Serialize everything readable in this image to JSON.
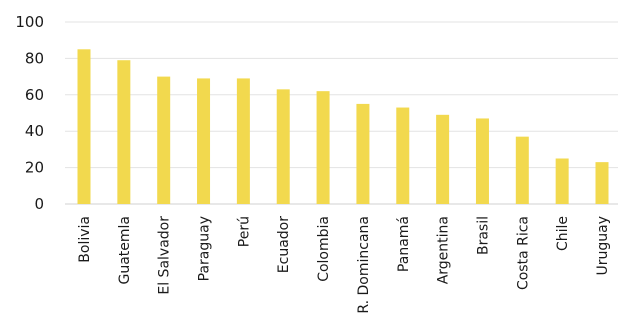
{
  "chart_data": {
    "type": "bar",
    "title": "",
    "xlabel": "",
    "ylabel": "",
    "categories": [
      "Bolivia",
      "Guatemla",
      "El Salvador",
      "Paraguay",
      "Perú",
      "Ecuador",
      "Colombia",
      "R. Domincana",
      "Panamá",
      "Argentina",
      "Brasil",
      "Costa Rica",
      "Chile",
      "Uruguay"
    ],
    "values": [
      85,
      79,
      70,
      69,
      69,
      63,
      62,
      55,
      53,
      49,
      47,
      37,
      25,
      23
    ],
    "ylim": [
      0,
      100
    ],
    "yticks": [
      0,
      20,
      40,
      60,
      80,
      100
    ],
    "grid": true,
    "legend": "none",
    "bar_color": "#f2d94e"
  }
}
